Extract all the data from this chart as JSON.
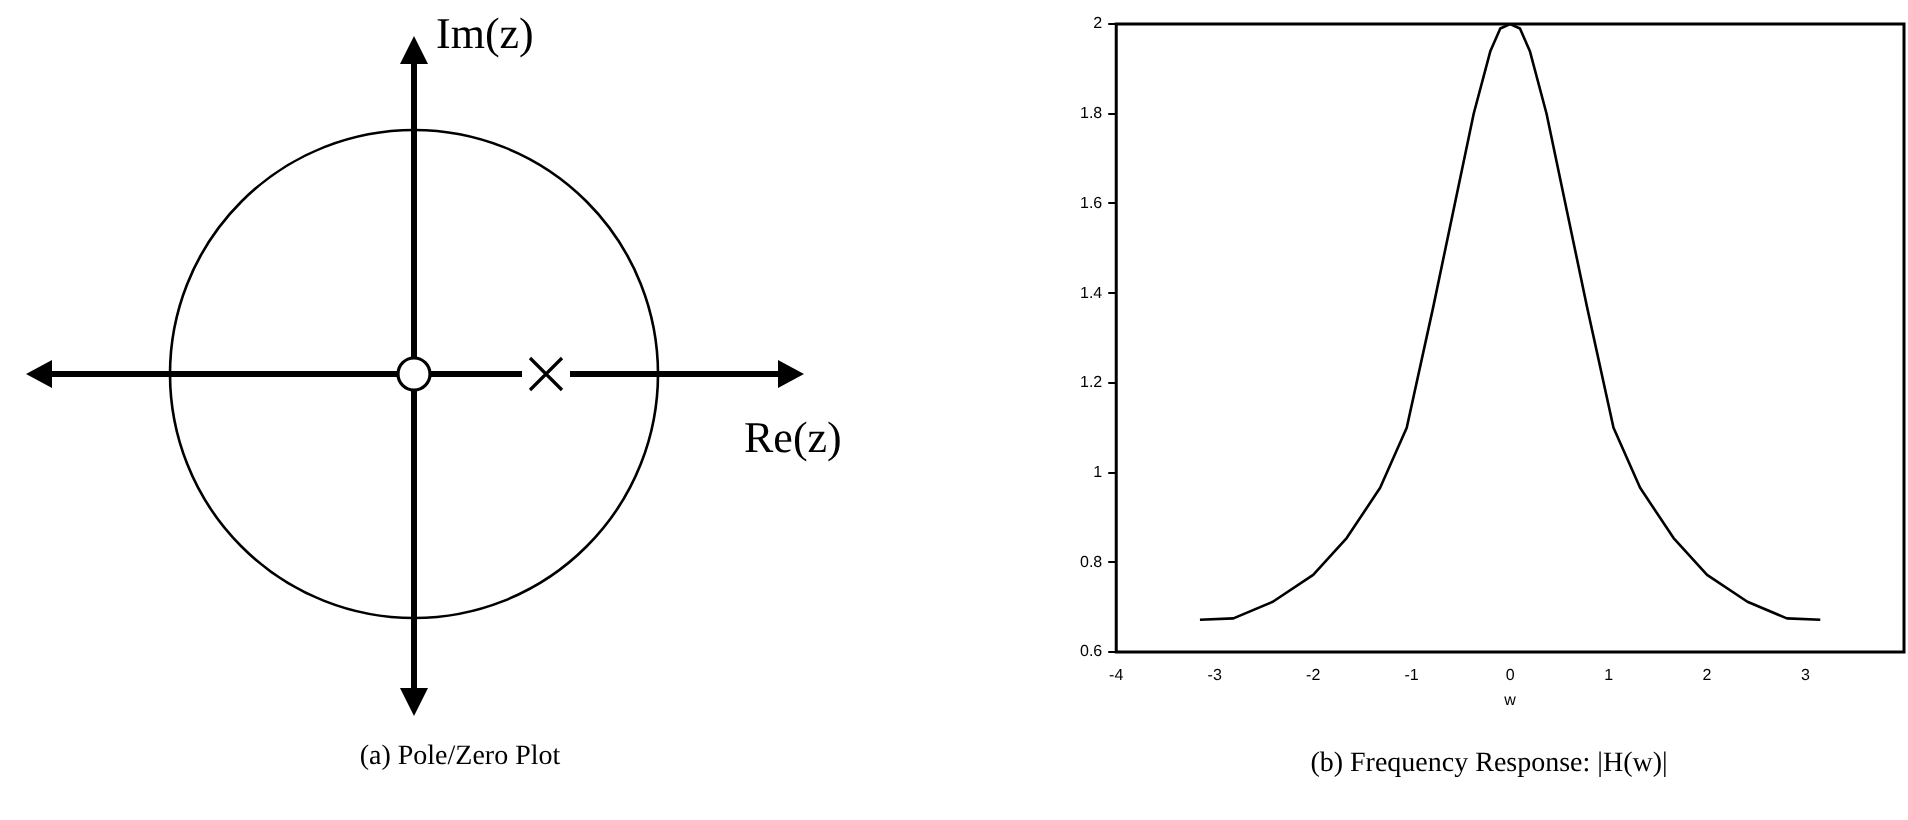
{
  "chart_data": [
    {
      "type": "other",
      "title": "(a) Pole/Zero Plot",
      "xlabel": "Re(z)",
      "ylabel": "Im(z)"
    },
    {
      "type": "line",
      "title": "(b) Frequency Response: |H(w)|",
      "xlabel": "w",
      "xlim": [
        -4,
        4
      ],
      "ylim": [
        0.6,
        2
      ],
      "xticks": [
        -4,
        -3,
        -2,
        -1,
        0,
        1,
        2,
        3
      ],
      "yticks": [
        0.6,
        0.8,
        1,
        1.2,
        1.4,
        1.6,
        1.8,
        2
      ],
      "grid": false,
      "legend": false,
      "marker": "none",
      "series": [
        {
          "color": "#000000",
          "x": [
            -3.15,
            -2.81,
            -2.41,
            -2.0,
            -1.66,
            -1.32,
            -1.05,
            -0.78,
            -0.58,
            -0.37,
            -0.2,
            -0.1,
            0,
            0.1,
            0.2,
            0.37,
            0.58,
            0.78,
            1.05,
            1.32,
            1.66,
            2.0,
            2.41,
            2.81,
            3.15
          ],
          "values": [
            0.672,
            0.675,
            0.712,
            0.772,
            0.854,
            0.966,
            1.1,
            1.37,
            1.58,
            1.8,
            1.94,
            1.99,
            2,
            1.99,
            1.94,
            1.8,
            1.58,
            1.37,
            1.1,
            0.966,
            0.854,
            0.772,
            0.712,
            0.675,
            0.672
          ]
        }
      ]
    }
  ]
}
